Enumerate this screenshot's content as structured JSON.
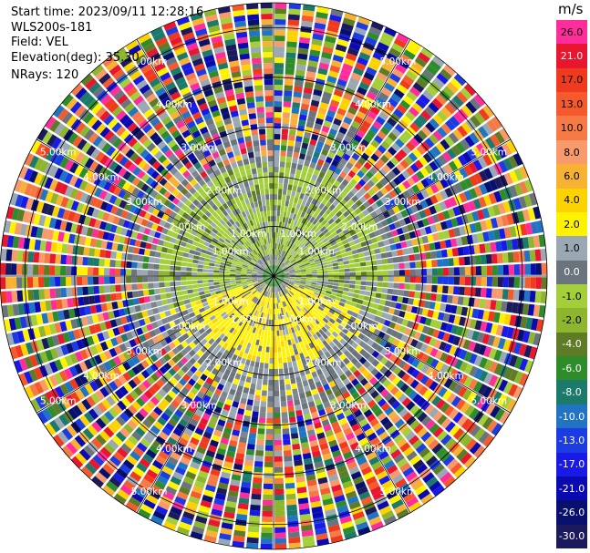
{
  "header": {
    "start_time": "Start time: 2023/09/11 12:28:16",
    "device": "WLS200s-181",
    "field": "Field: VEL",
    "elevation": "Elevation(deg): 35.30",
    "nrays": "NRays: 120"
  },
  "chart_data": {
    "type": "heatmap",
    "projection": "polar-ppi",
    "field": "VEL",
    "nrays": 120,
    "range_rings_km": [
      {
        "label": "1.00km",
        "km": 1.0
      },
      {
        "label": "2.00km",
        "km": 2.0
      },
      {
        "label": "3.00km",
        "km": 3.0
      },
      {
        "label": "4.00km",
        "km": 4.0
      },
      {
        "label": "5.00km",
        "km": 5.0
      }
    ],
    "max_range_km": 5.5,
    "colorbar": {
      "unit": "m/s",
      "levels": [
        {
          "label": "26.0",
          "color": "#ff2d9b"
        },
        {
          "label": "21.0",
          "color": "#e8162e"
        },
        {
          "label": "17.0",
          "color": "#f03a1e"
        },
        {
          "label": "13.0",
          "color": "#f45a2b"
        },
        {
          "label": "10.0",
          "color": "#f67a46"
        },
        {
          "label": "8.0",
          "color": "#f99a6a"
        },
        {
          "label": "6.0",
          "color": "#f7b233"
        },
        {
          "label": "4.0",
          "color": "#fcd300"
        },
        {
          "label": "2.0",
          "color": "#fff200"
        },
        {
          "label": "1.0",
          "color": "#9aa8b4"
        },
        {
          "label": "0.0",
          "color": "#6b747c"
        },
        {
          "label": "-1.0",
          "color": "#a3cf3b"
        },
        {
          "label": "-2.0",
          "color": "#8eb52e"
        },
        {
          "label": "-4.0",
          "color": "#5e7c25"
        },
        {
          "label": "-6.0",
          "color": "#2f8c2a"
        },
        {
          "label": "-8.0",
          "color": "#1c7a6a"
        },
        {
          "label": "-10.0",
          "color": "#2173c4"
        },
        {
          "label": "-13.0",
          "color": "#1c3ce3"
        },
        {
          "label": "-17.0",
          "color": "#1a1ae6"
        },
        {
          "label": "-21.0",
          "color": "#0a0ab0"
        },
        {
          "label": "-26.0",
          "color": "#08106e"
        },
        {
          "label": "-30.0",
          "color": "#1a1a5c"
        }
      ]
    },
    "zones": {
      "green_wind_region_km": [
        0.4,
        2.2
      ],
      "yellow_wind_region_km": [
        0.4,
        1.7
      ],
      "noise_start_km": 2.4
    },
    "grid": true
  }
}
